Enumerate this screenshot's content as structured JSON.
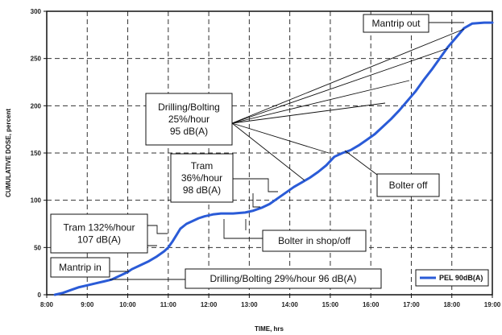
{
  "chart_data": {
    "type": "line",
    "xlabel": "TIME, hrs",
    "ylabel": "CUMULATIVE DOSE, percent",
    "xlim": [
      8,
      19
    ],
    "ylim": [
      0,
      300
    ],
    "x_ticks": [
      "8:00",
      "9:00",
      "10:00",
      "11:00",
      "12:00",
      "13:00",
      "14:00",
      "15:00",
      "16:00",
      "17:00",
      "18:00",
      "19:00"
    ],
    "y_ticks": [
      "0",
      "50",
      "100",
      "150",
      "200",
      "250",
      "300"
    ],
    "grid": true,
    "legend_position": "bottom-right",
    "series": [
      {
        "name": "PEL 90dB(A)",
        "color": "#2a5bd7",
        "x": [
          8.2,
          8.4,
          8.6,
          8.8,
          9.0,
          9.2,
          9.4,
          9.6,
          9.8,
          10.0,
          10.1,
          10.3,
          10.5,
          10.7,
          10.9,
          11.0,
          11.1,
          11.2,
          11.3,
          11.45,
          11.6,
          11.75,
          11.9,
          12.1,
          12.3,
          12.6,
          12.9,
          13.1,
          13.3,
          13.5,
          13.7,
          13.9,
          14.1,
          14.3,
          14.5,
          14.7,
          14.9,
          15.1,
          15.3,
          15.5,
          15.7,
          15.9,
          16.1,
          16.3,
          16.5,
          16.7,
          16.9,
          17.1,
          17.3,
          17.5,
          17.7,
          17.9,
          18.1,
          18.3,
          18.5,
          18.8,
          19.0
        ],
        "y": [
          0,
          2,
          5,
          8,
          10,
          12,
          14,
          16,
          20,
          24,
          27,
          31,
          35,
          40,
          46,
          50,
          56,
          63,
          70,
          75,
          78,
          81,
          83,
          85,
          86,
          86,
          87,
          89,
          92,
          96,
          102,
          108,
          114,
          119,
          124,
          130,
          137,
          146,
          150,
          153,
          158,
          164,
          170,
          178,
          186,
          195,
          205,
          215,
          227,
          238,
          250,
          262,
          272,
          282,
          287,
          288,
          288
        ]
      }
    ],
    "annotations": [
      {
        "lines": [
          "Mantrip out"
        ]
      },
      {
        "lines": [
          "Drilling/Bolting",
          "25%/hour",
          "95 dB(A)"
        ]
      },
      {
        "lines": [
          "Tram",
          "36%/hour",
          "98 dB(A)"
        ]
      },
      {
        "lines": [
          "Bolter off"
        ]
      },
      {
        "lines": [
          "Tram 132%/hour",
          "107 dB(A)"
        ]
      },
      {
        "lines": [
          "Bolter in shop/off"
        ]
      },
      {
        "lines": [
          "Mantrip in"
        ]
      },
      {
        "lines": [
          "Drilling/Bolting  29%/hour  96 dB(A)"
        ]
      }
    ]
  }
}
